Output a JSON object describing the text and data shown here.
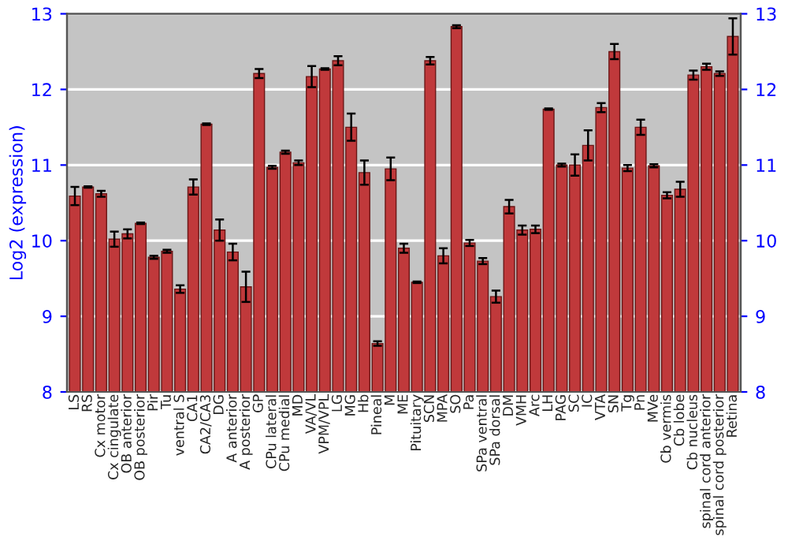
{
  "chart_data": {
    "type": "bar",
    "ylabel": "Log2 (expression)",
    "categories": [
      "LS",
      "RS",
      "Cx motor",
      "Cx cingulate",
      "OB anterior",
      "OB posterior",
      "Pir",
      "Tu",
      "ventral S",
      "CA1",
      "CA2/CA3",
      "DG",
      "A anterior",
      "A posterior",
      "GP",
      "CPu lateral",
      "CPu medial",
      "MD",
      "VA/VL",
      "VPM/VPL",
      "LG",
      "MG",
      "Hb",
      "Pineal",
      "M",
      "ME",
      "Pituitary",
      "SCN",
      "MPA",
      "SO",
      "Pa",
      "SPa ventral",
      "SPa dorsal",
      "DM",
      "VMH",
      "Arc",
      "LH",
      "PAG",
      "SC",
      "IC",
      "VTA",
      "SN",
      "Tg",
      "Pn",
      "MVe",
      "Cb vermis",
      "Cb lobe",
      "Cb nucleus",
      "spinal cord anterior",
      "spinal cord posterior",
      "Retina"
    ],
    "values": [
      10.59,
      10.71,
      10.62,
      10.02,
      10.09,
      10.23,
      9.78,
      9.86,
      9.36,
      10.71,
      11.54,
      10.14,
      9.85,
      9.39,
      12.21,
      10.97,
      11.17,
      11.03,
      12.17,
      12.27,
      12.38,
      11.5,
      10.9,
      8.64,
      10.95,
      9.9,
      9.45,
      12.38,
      9.8,
      12.83,
      9.97,
      9.73,
      9.26,
      10.45,
      10.14,
      10.15,
      11.74,
      11.0,
      11.0,
      11.26,
      11.76,
      12.5,
      10.96,
      11.5,
      10.99,
      10.6,
      10.68,
      12.19,
      12.3,
      12.21,
      12.7
    ],
    "errors": [
      0.12,
      0.01,
      0.04,
      0.1,
      0.06,
      0.01,
      0.02,
      0.02,
      0.05,
      0.1,
      0.01,
      0.14,
      0.11,
      0.2,
      0.06,
      0.02,
      0.02,
      0.03,
      0.14,
      0.01,
      0.06,
      0.18,
      0.16,
      0.03,
      0.15,
      0.06,
      0.01,
      0.05,
      0.1,
      0.02,
      0.04,
      0.04,
      0.08,
      0.09,
      0.06,
      0.05,
      0.01,
      0.02,
      0.14,
      0.2,
      0.06,
      0.1,
      0.04,
      0.1,
      0.02,
      0.04,
      0.1,
      0.06,
      0.04,
      0.03,
      0.24
    ],
    "color": "#c0393b",
    "ylim": [
      8,
      13
    ],
    "yticks": [
      8,
      9,
      10,
      11,
      12,
      13
    ],
    "y2lim": [
      8,
      13
    ],
    "y2ticks": [
      8,
      9,
      10,
      11,
      12,
      13
    ],
    "grid": "y",
    "legend": false
  }
}
